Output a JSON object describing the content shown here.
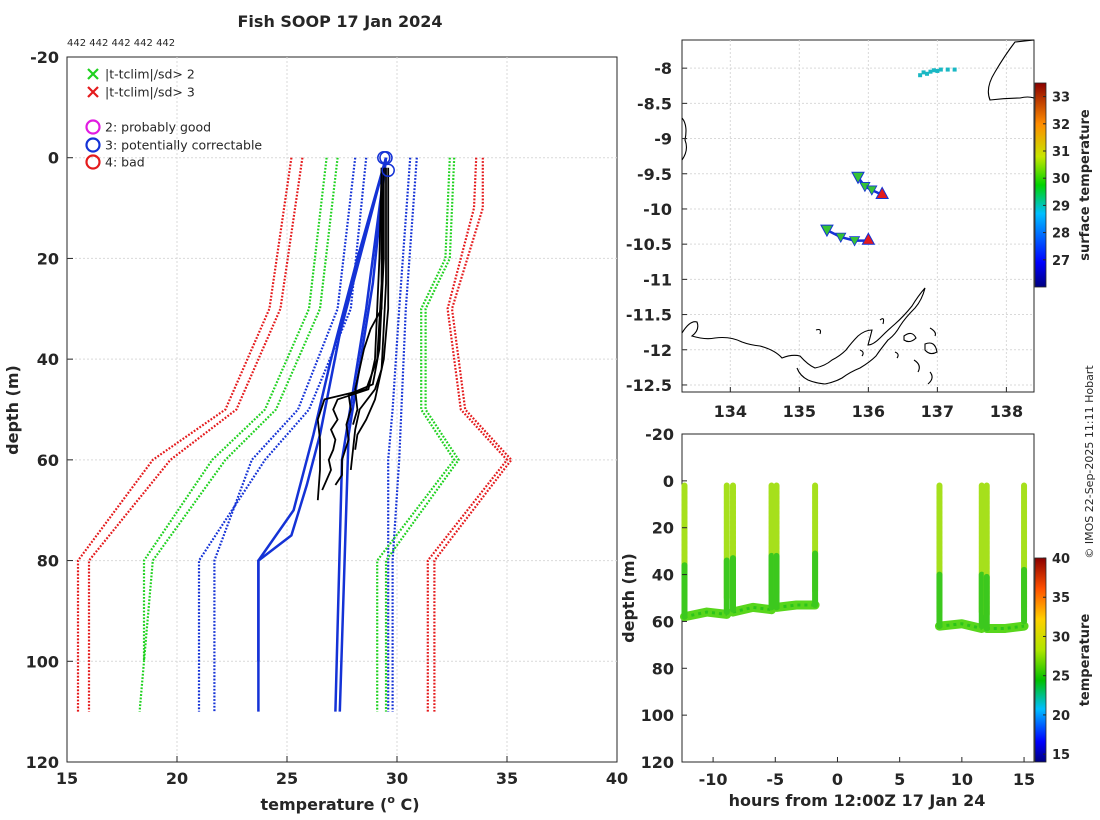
{
  "title": "Fish SOOP 17 Jan 2024",
  "id_list": "442 442 442 442 442",
  "credit": "© IMOS 22-Sep-2025 11:11 Hobart",
  "chart_data": [
    {
      "type": "line",
      "name": "profiles",
      "xlabel": "temperature (",
      "xlabel_sup": "o",
      "xlabel_end": " C)",
      "ylabel": "depth (m)",
      "xlim": [
        15,
        40
      ],
      "ylim": [
        -20,
        120
      ],
      "xticks": [
        15,
        20,
        25,
        30,
        35,
        40
      ],
      "yticks": [
        -20,
        0,
        20,
        40,
        60,
        80,
        100,
        120
      ],
      "legend": [
        {
          "label": "|t-tclim|/sd> 2",
          "color": "#1fd11f",
          "marker": "x"
        },
        {
          "label": "|t-tclim|/sd> 3",
          "color": "#e41a1c",
          "marker": "x"
        },
        {
          "label": "2: probably good",
          "color": "#e11be1",
          "marker": "o"
        },
        {
          "label": "3: potentially correctable",
          "color": "#1432d6",
          "marker": "o"
        },
        {
          "label": "4: bad",
          "color": "#e41a1c",
          "marker": "o"
        }
      ],
      "climatology": [
        {
          "name": "sd3-low",
          "color": "#e41a1c",
          "lines": [
            {
              "depth": [
                0,
                30,
                50,
                60,
                80,
                110
              ],
              "temp": [
                25.7,
                24.7,
                22.7,
                19.7,
                16.0,
                16.0
              ]
            },
            {
              "depth": [
                0,
                30,
                50,
                60,
                80,
                110
              ],
              "temp": [
                25.2,
                24.2,
                22.2,
                18.9,
                15.5,
                15.5
              ]
            }
          ]
        },
        {
          "name": "sd2-low",
          "color": "#1fd11f",
          "lines": [
            {
              "depth": [
                0,
                30,
                50,
                60,
                80,
                100
              ],
              "temp": [
                26.8,
                26.0,
                24.0,
                21.6,
                18.5,
                18.5
              ]
            },
            {
              "depth": [
                0,
                30,
                50,
                60,
                80,
                110
              ],
              "temp": [
                27.3,
                26.5,
                24.5,
                22.2,
                18.9,
                18.3
              ]
            }
          ]
        },
        {
          "name": "clim-low",
          "color": "#1432d6",
          "lines": [
            {
              "depth": [
                0,
                30,
                50,
                60,
                80,
                110
              ],
              "temp": [
                28.6,
                27.9,
                26.0,
                24.0,
                21.0,
                21.0
              ]
            },
            {
              "depth": [
                0,
                30,
                50,
                60,
                80,
                110
              ],
              "temp": [
                28.1,
                27.3,
                25.5,
                23.4,
                21.7,
                21.7
              ]
            }
          ]
        },
        {
          "name": "clim-high",
          "color": "#1432d6",
          "lines": [
            {
              "depth": [
                0,
                30,
                50,
                60,
                80,
                110
              ],
              "temp": [
                30.9,
                30.4,
                30.2,
                30.1,
                29.8,
                29.8
              ]
            },
            {
              "depth": [
                0,
                30,
                50,
                60,
                80,
                110
              ],
              "temp": [
                30.6,
                30.1,
                29.8,
                29.6,
                29.6,
                29.6
              ]
            }
          ]
        },
        {
          "name": "sd2-high",
          "color": "#1fd11f",
          "lines": [
            {
              "depth": [
                0,
                20,
                30,
                50,
                60,
                80,
                110
              ],
              "temp": [
                32.4,
                32.2,
                31.1,
                31.1,
                32.6,
                29.1,
                29.1
              ]
            },
            {
              "depth": [
                0,
                20,
                30,
                50,
                60,
                80,
                110
              ],
              "temp": [
                32.6,
                32.4,
                31.3,
                31.3,
                32.8,
                29.5,
                29.5
              ]
            }
          ]
        },
        {
          "name": "sd3-high",
          "color": "#e41a1c",
          "lines": [
            {
              "depth": [
                0,
                10,
                30,
                50,
                60,
                80,
                110
              ],
              "temp": [
                33.9,
                33.9,
                32.5,
                33.1,
                35.2,
                31.7,
                31.7
              ]
            },
            {
              "depth": [
                0,
                10,
                30,
                50,
                60,
                80,
                110
              ],
              "temp": [
                33.6,
                33.5,
                32.3,
                32.9,
                35.0,
                31.4,
                31.4
              ]
            }
          ]
        }
      ],
      "profiles_blue": [
        {
          "depth": [
            0,
            20,
            40,
            55,
            60,
            70,
            80,
            100
          ],
          "temp": [
            29.5,
            28.2,
            27.0,
            26.2,
            25.9,
            25.3,
            23.7,
            23.7
          ]
        },
        {
          "depth": [
            0,
            15,
            35,
            55,
            65,
            75,
            80,
            110
          ],
          "temp": [
            29.5,
            28.6,
            27.4,
            26.5,
            25.9,
            25.2,
            23.7,
            23.7
          ]
        },
        {
          "depth": [
            0,
            30,
            60,
            110
          ],
          "temp": [
            29.5,
            28.6,
            27.5,
            27.2
          ]
        },
        {
          "depth": [
            0,
            25,
            55,
            110
          ],
          "temp": [
            29.5,
            28.9,
            27.8,
            27.4
          ]
        }
      ],
      "profiles_black": [
        {
          "depth": [
            2,
            20,
            40,
            46,
            48,
            50,
            52,
            54,
            56,
            58,
            60,
            62,
            64,
            66
          ],
          "temp": [
            29.3,
            29.2,
            29.0,
            28.7,
            27.3,
            27.1,
            27.3,
            27.0,
            27.2,
            27.1,
            26.9,
            27.0,
            26.8,
            26.6
          ]
        },
        {
          "depth": [
            2,
            20,
            38,
            45,
            47,
            50,
            53,
            56,
            60,
            63,
            65
          ],
          "temp": [
            29.4,
            29.4,
            29.2,
            28.9,
            27.8,
            27.9,
            27.7,
            27.8,
            27.5,
            27.5,
            27.2
          ]
        },
        {
          "depth": [
            2,
            25,
            42,
            46,
            50,
            54,
            58,
            62
          ],
          "temp": [
            29.5,
            29.5,
            29.3,
            29.0,
            28.3,
            28.1,
            28.0,
            27.9
          ]
        },
        {
          "depth": [
            2,
            30,
            40,
            44,
            48,
            52,
            55,
            58
          ],
          "temp": [
            29.6,
            29.6,
            29.4,
            29.2,
            29.0,
            28.6,
            28.2,
            28.1
          ]
        },
        {
          "depth": [
            2,
            30,
            34,
            38,
            42,
            46,
            50,
            53
          ],
          "temp": [
            29.4,
            29.3,
            28.8,
            28.5,
            28.3,
            28.1,
            28.2,
            28.0
          ]
        },
        {
          "depth": [
            2,
            25,
            40,
            46,
            48,
            52,
            56,
            62,
            68
          ],
          "temp": [
            29.3,
            29.3,
            29.1,
            28.6,
            26.7,
            26.4,
            26.5,
            26.5,
            26.4
          ]
        }
      ],
      "flag_points": [
        {
          "temp": 29.5,
          "depth": 0,
          "flag": 3
        },
        {
          "temp": 29.4,
          "depth": 0,
          "flag": 3
        },
        {
          "temp": 29.6,
          "depth": 2.5,
          "flag": 3
        }
      ]
    },
    {
      "type": "scatter",
      "name": "map",
      "xlim": [
        133.3,
        138.4
      ],
      "ylim": [
        -12.6,
        -7.6
      ],
      "xticks": [
        134,
        135,
        136,
        137,
        138
      ],
      "yticks": [
        -8,
        -8.5,
        -9,
        -9.5,
        -10,
        -10.5,
        -11,
        -11.5,
        -12,
        -12.5
      ],
      "colorbar_label": "surface temperature",
      "colorbar_range": [
        26,
        33.5
      ],
      "colorbar_ticks": [
        27,
        28,
        29,
        30,
        31,
        32,
        33
      ],
      "track_start_marker": "down-triangle",
      "track_end_marker": "up-triangle",
      "tracks": [
        {
          "lon": [
            135.85,
            135.95,
            136.05,
            136.2
          ],
          "lat": [
            -9.55,
            -9.68,
            -9.73,
            -9.8
          ],
          "temp": [
            29.8,
            29.9,
            30.3,
            30.7
          ],
          "start": [
            135.85,
            -9.55
          ],
          "end": [
            136.2,
            -9.78
          ]
        },
        {
          "lon": [
            135.4,
            135.6,
            135.8,
            136.0
          ],
          "lat": [
            -10.3,
            -10.4,
            -10.45,
            -10.45
          ],
          "temp": [
            29.6,
            29.9,
            30.1,
            30.4
          ],
          "start": [
            135.4,
            -10.3
          ],
          "end": [
            136.0,
            -10.43
          ]
        }
      ],
      "cyan_points": {
        "lon": [
          136.75,
          136.8,
          136.85,
          136.9,
          136.95,
          137.0,
          137.05,
          137.15,
          137.25
        ],
        "lat": [
          -8.1,
          -8.06,
          -8.08,
          -8.05,
          -8.03,
          -8.04,
          -8.02,
          -8.02,
          -8.02
        ]
      }
    },
    {
      "type": "scatter",
      "name": "time-depth",
      "xlabel": "hours from 12:00Z 17 Jan 24",
      "ylabel": "depth (m)",
      "xlim": [
        -12.5,
        15.8
      ],
      "ylim": [
        -20,
        120
      ],
      "xticks": [
        -10,
        -5,
        0,
        5,
        10,
        15
      ],
      "yticks": [
        -20,
        0,
        20,
        40,
        60,
        80,
        100,
        120
      ],
      "colorbar_label": "temperature",
      "colorbar_range": [
        14,
        40
      ],
      "colorbar_ticks": [
        15,
        20,
        25,
        30,
        35,
        40
      ],
      "casts": [
        {
          "time": -12.3,
          "max_depth": 58
        },
        {
          "time": -8.9,
          "max_depth": 56
        },
        {
          "time": -8.4,
          "max_depth": 55
        },
        {
          "time": -5.3,
          "max_depth": 54
        },
        {
          "time": -4.9,
          "max_depth": 54
        },
        {
          "time": -1.8,
          "max_depth": 53
        },
        {
          "time": 8.2,
          "max_depth": 62
        },
        {
          "time": 11.6,
          "max_depth": 62
        },
        {
          "time": 12.0,
          "max_depth": 63
        },
        {
          "time": 15.0,
          "max_depth": 60
        }
      ],
      "bottom_segments": [
        {
          "time": [
            -12.3,
            -10.5,
            -8.9
          ],
          "depth": [
            58,
            56,
            57
          ]
        },
        {
          "time": [
            -8.4,
            -6.8,
            -5.3
          ],
          "depth": [
            56,
            54,
            55
          ]
        },
        {
          "time": [
            -4.9,
            -3.3,
            -1.8
          ],
          "depth": [
            54,
            53,
            53
          ]
        },
        {
          "time": [
            8.2,
            10.0,
            11.6
          ],
          "depth": [
            62,
            61,
            63
          ]
        },
        {
          "time": [
            12.0,
            13.5,
            15.0
          ],
          "depth": [
            63,
            63,
            62
          ]
        }
      ]
    }
  ]
}
